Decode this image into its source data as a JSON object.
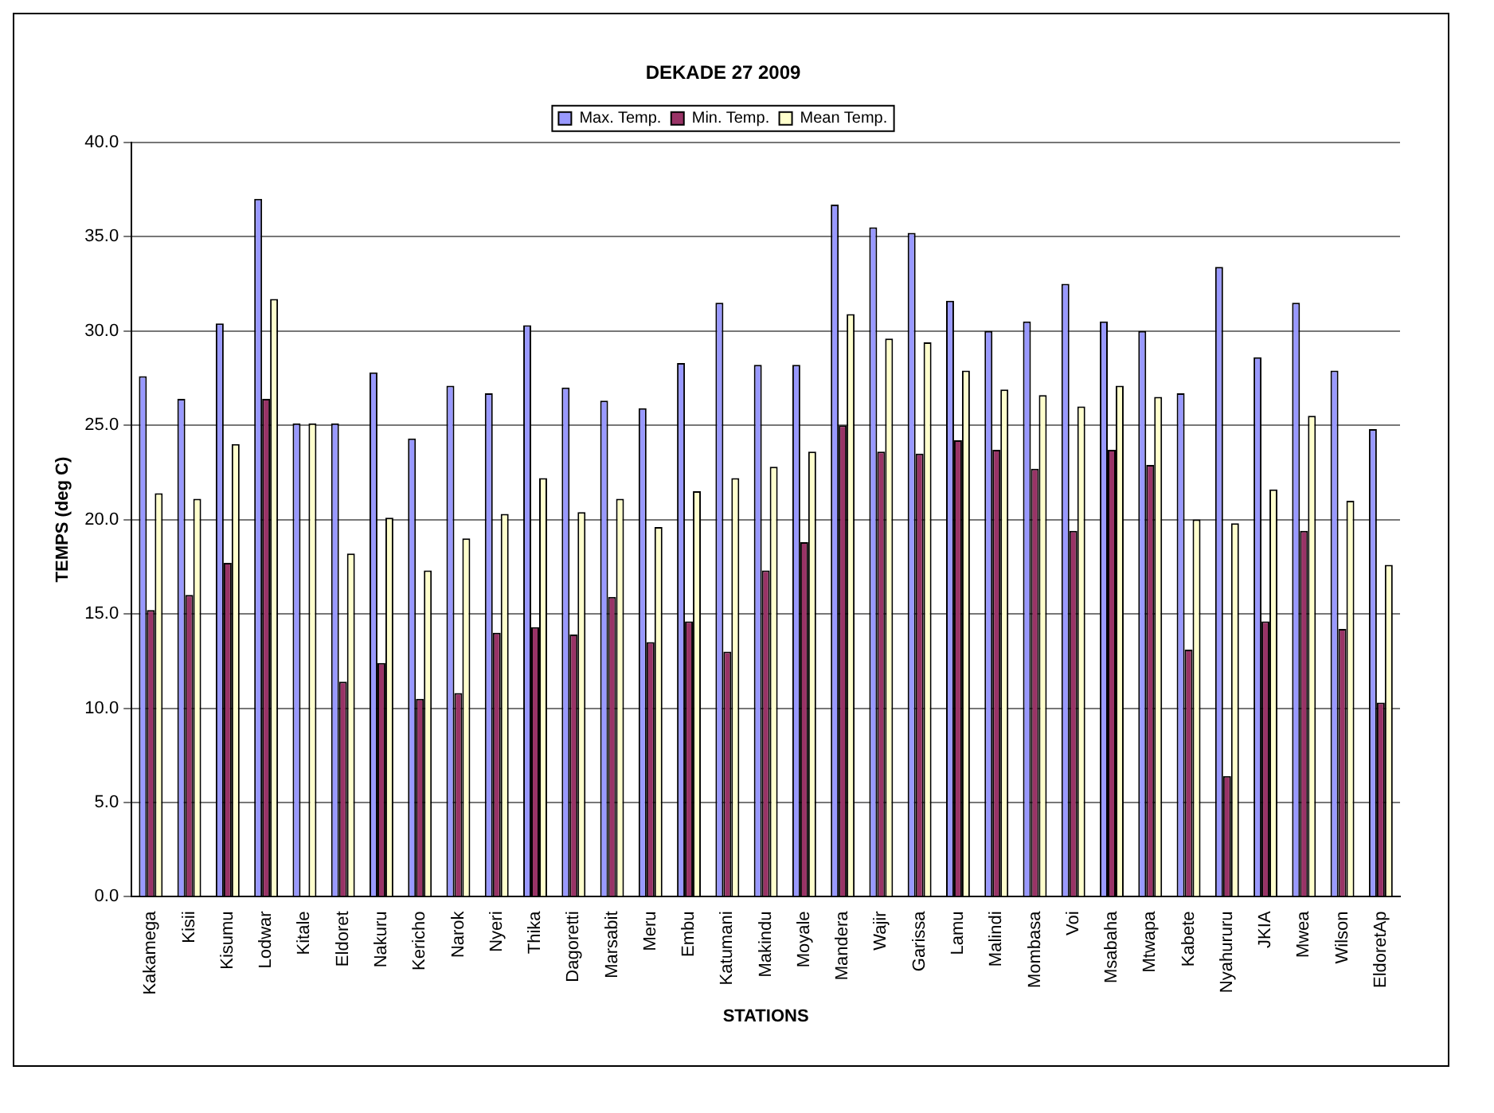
{
  "chart_data": {
    "type": "bar",
    "title": "DEKADE 27 2009",
    "xlabel": "STATIONS",
    "ylabel": "TEMPS (deg C)",
    "categories": [
      "Kakamega",
      "Kisii",
      "Kisumu",
      "Lodwar",
      "Kitale",
      "Eldoret",
      "Nakuru",
      "Kericho",
      "Narok",
      "Nyeri",
      "Thika",
      "Dagoretti",
      "Marsabit",
      "Meru",
      "Embu",
      "Katumani",
      "Makindu",
      "Moyale",
      "Mandera",
      "Wajir",
      "Garissa",
      "Lamu",
      "Malindi",
      "Mombasa",
      "Voi",
      "Msabaha",
      "Mtwapa",
      "Kabete",
      "Nyahururu",
      "JKIA",
      "Mwea",
      "Wilson",
      "EldoretAp"
    ],
    "series": [
      {
        "name": "Max. Temp.",
        "color": "#9999ff",
        "values": [
          27.6,
          26.4,
          30.4,
          37.0,
          25.1,
          25.1,
          27.8,
          24.3,
          27.1,
          26.7,
          30.3,
          27.0,
          26.3,
          25.9,
          28.3,
          31.5,
          28.2,
          28.2,
          36.7,
          35.5,
          35.2,
          31.6,
          30.0,
          30.5,
          32.5,
          30.5,
          30.0,
          26.7,
          33.4,
          28.6,
          31.5,
          27.9,
          24.8
        ]
      },
      {
        "name": "Min. Temp.",
        "color": "#993366",
        "values": [
          15.2,
          16.0,
          17.7,
          26.4,
          null,
          11.4,
          12.4,
          10.5,
          10.8,
          14.0,
          14.3,
          13.9,
          15.9,
          13.5,
          14.6,
          13.0,
          17.3,
          18.8,
          25.0,
          23.6,
          23.5,
          24.2,
          23.7,
          22.7,
          19.4,
          23.7,
          22.9,
          13.1,
          6.4,
          14.6,
          19.4,
          14.2,
          10.3
        ]
      },
      {
        "name": "Mean Temp.",
        "color": "#ffffcc",
        "values": [
          21.4,
          21.1,
          24.0,
          31.7,
          25.1,
          18.2,
          20.1,
          17.3,
          19.0,
          20.3,
          22.2,
          20.4,
          21.1,
          19.6,
          21.5,
          22.2,
          22.8,
          23.6,
          30.9,
          29.6,
          29.4,
          27.9,
          26.9,
          26.6,
          26.0,
          27.1,
          26.5,
          20.0,
          19.8,
          21.6,
          25.5,
          21.0,
          17.6
        ]
      }
    ],
    "ylim": [
      0,
      40
    ],
    "yticks": [
      {
        "value": 0,
        "label": "0.0"
      },
      {
        "value": 5,
        "label": "5.0"
      },
      {
        "value": 10,
        "label": "10.0"
      },
      {
        "value": 15,
        "label": "15.0"
      },
      {
        "value": 20,
        "label": "20.0"
      },
      {
        "value": 25,
        "label": "25.0"
      },
      {
        "value": 30,
        "label": "30.0"
      },
      {
        "value": 35,
        "label": "35.0"
      },
      {
        "value": 40,
        "label": "40.0"
      }
    ],
    "grid": "y",
    "legend": "top"
  }
}
